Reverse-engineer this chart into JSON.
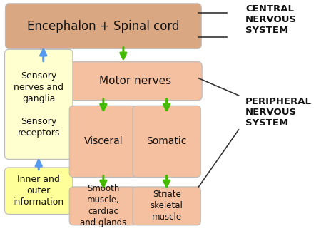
{
  "bg_color": "#ffffff",
  "box_color_brown": "#d9a882",
  "box_color_salmon": "#f4c0a0",
  "box_color_yellow": "#ffff99",
  "box_color_yellow_light": "#ffffd0",
  "arrow_color_green": "#44bb00",
  "arrow_color_blue": "#5599ee",
  "line_color": "#333333",
  "text_color": "#111111",
  "labels": {
    "title": "Encephalon + Spinal cord",
    "motor_nerves": "Motor nerves",
    "visceral": "Visceral",
    "somatic": "Somatic",
    "smooth": "Smooth\nmuscle,\ncardiac\nand glands",
    "striate": "Striate\nskeletal\nmuscle",
    "sensory_ng": "Sensory\nnerves and\nganglia",
    "sensory_rec": "Sensory\nreceptors",
    "inner": "Inner and\nouter\ninformation",
    "cns": "CENTRAL\nNERVOUS\nSYSTEM",
    "pns": "PERIPHERAL\nNERVOUS\nSYSTEM"
  }
}
